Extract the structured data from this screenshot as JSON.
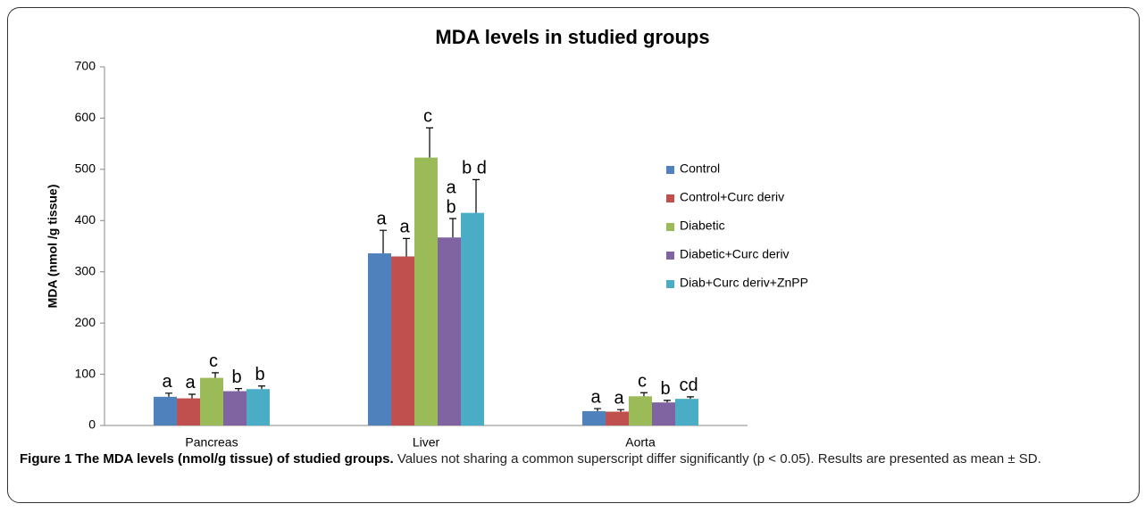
{
  "chart_data": {
    "type": "bar",
    "title": "MDA levels in studied groups",
    "y_label": "MDA (nmol /g tissue)",
    "categories": [
      "Pancreas",
      "Liver",
      "Aorta"
    ],
    "ylim": [
      0,
      700
    ],
    "yticks": [
      0,
      100,
      200,
      300,
      400,
      500,
      600,
      700
    ],
    "legend": "right",
    "series": [
      {
        "name": "Control",
        "color": "#4f81bd",
        "values": [
          56,
          336,
          28
        ],
        "errors": [
          7,
          45,
          5
        ],
        "letters": [
          [
            "a"
          ],
          [
            "a"
          ],
          [
            "a"
          ]
        ]
      },
      {
        "name": "Control+Curc deriv",
        "color": "#c0504d",
        "values": [
          53,
          330,
          27
        ],
        "errors": [
          8,
          35,
          4
        ],
        "letters": [
          [
            "a"
          ],
          [
            "a"
          ],
          [
            "a"
          ]
        ]
      },
      {
        "name": "Diabetic",
        "color": "#9bbb59",
        "values": [
          93,
          523,
          57
        ],
        "errors": [
          10,
          58,
          7
        ],
        "letters": [
          [
            "c"
          ],
          [
            "c"
          ],
          [
            "c"
          ]
        ]
      },
      {
        "name": "Diabetic+Curc deriv",
        "color": "#8064a2",
        "values": [
          67,
          367,
          45
        ],
        "errors": [
          5,
          37,
          4
        ],
        "letters": [
          [
            "b"
          ],
          [
            "a",
            "b"
          ],
          [
            "b"
          ]
        ]
      },
      {
        "name": "Diab+Curc deriv+ZnPP",
        "color": "#4bacc6",
        "values": [
          71,
          415,
          52
        ],
        "errors": [
          6,
          65,
          4
        ],
        "letters": [
          [
            "b"
          ],
          [
            "b d"
          ],
          [
            "cd"
          ]
        ]
      }
    ]
  },
  "caption": {
    "label": "Figure 1 The MDA levels (nmol/g tissue) of studied groups.",
    "text": "Values not sharing a common superscript differ significantly (p < 0.05). Results are presented as mean ± SD."
  }
}
